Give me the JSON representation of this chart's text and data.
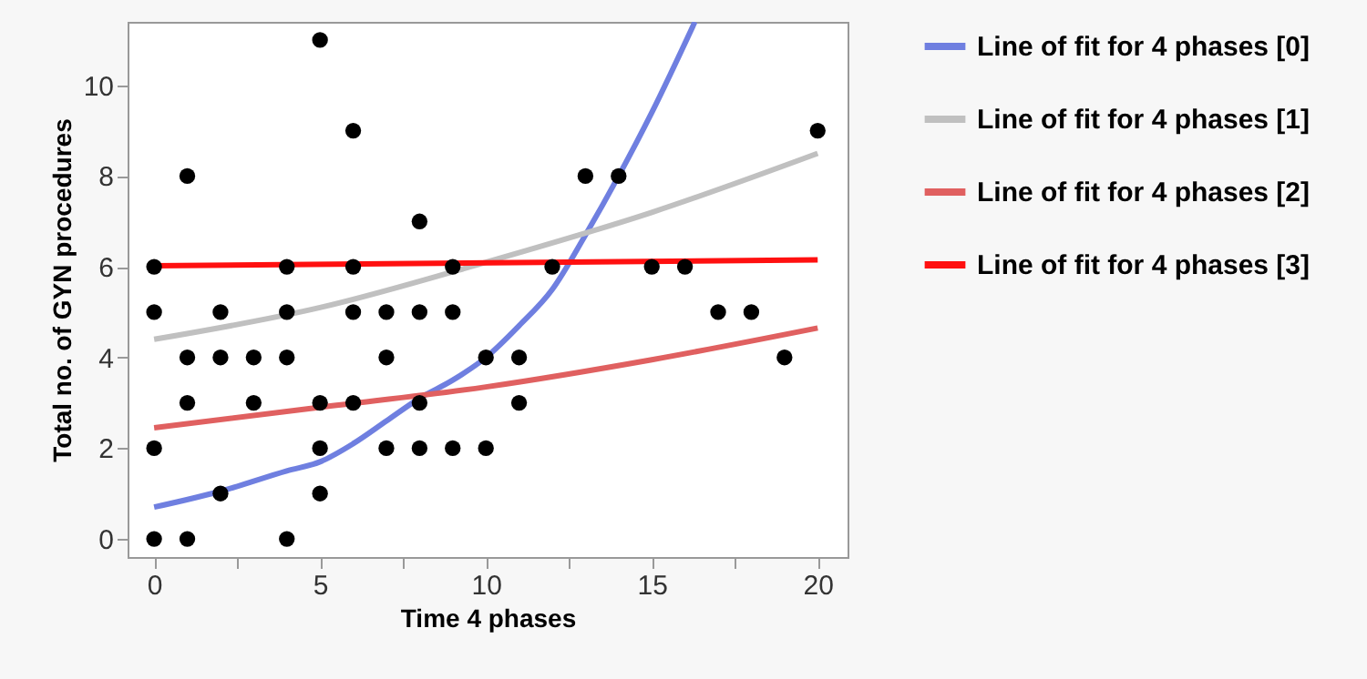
{
  "chart_data": {
    "type": "scatter",
    "xlabel": "Time 4 phases",
    "ylabel": "Total no. of GYN procedures",
    "xlim": [
      -0.8,
      20.9
    ],
    "ylim": [
      -0.4,
      11.4
    ],
    "xticks": [
      0,
      {
        "value": 2.5,
        "label": null
      },
      5,
      {
        "value": 7.5,
        "label": null
      },
      10,
      {
        "value": 12.5,
        "label": null
      },
      15,
      {
        "value": 17.5,
        "label": null
      },
      20
    ],
    "yticks": [
      0,
      2,
      4,
      6,
      8,
      10
    ],
    "grid": false,
    "legend": "right",
    "line_style": "solid",
    "series": [
      {
        "marker": "circle",
        "color": "#000000",
        "x": [
          0,
          0,
          0,
          0,
          1,
          1,
          1,
          1,
          2,
          2,
          2,
          3,
          3,
          4,
          4,
          4,
          4,
          5,
          5,
          5,
          5,
          6,
          6,
          6,
          6,
          7,
          7,
          7,
          8,
          8,
          8,
          8,
          9,
          9,
          9,
          10,
          10,
          11,
          11,
          12,
          13,
          14,
          15,
          16,
          17,
          18,
          19,
          20
        ],
        "values": [
          6,
          5,
          2,
          0,
          8,
          4,
          3,
          0,
          5,
          4,
          1,
          4,
          3,
          6,
          5,
          4,
          0,
          11,
          3,
          2,
          1,
          9,
          6,
          5,
          3,
          5,
          4,
          2,
          7,
          5,
          3,
          2,
          6,
          5,
          2,
          4,
          2,
          4,
          3,
          6,
          8,
          8,
          6,
          6,
          5,
          5,
          4,
          9
        ]
      },
      {
        "type": "line",
        "name": "Line of fit for 4 phases [0]",
        "color": "#6f7fe0",
        "x": [
          0,
          2,
          4,
          5,
          6,
          7,
          8,
          9,
          10,
          11,
          12,
          13,
          14,
          15,
          16.3
        ],
        "values": [
          0.7,
          1.05,
          1.5,
          1.7,
          2.1,
          2.6,
          3.1,
          3.5,
          4.0,
          4.7,
          5.5,
          6.7,
          8.0,
          9.4,
          11.4
        ]
      },
      {
        "type": "line",
        "name": "Line of fit for 4 phases [1]",
        "color": "#c0c0c0",
        "x": [
          0,
          5,
          10,
          15,
          20
        ],
        "values": [
          4.4,
          5.1,
          6.1,
          7.2,
          8.5
        ]
      },
      {
        "type": "line",
        "name": "Line of fit for 4 phases [2]",
        "color": "#e06060",
        "x": [
          0,
          5,
          10,
          15,
          20
        ],
        "values": [
          2.45,
          2.9,
          3.35,
          3.95,
          4.65
        ]
      },
      {
        "type": "line",
        "name": "Line of fit for 4 phases [3]",
        "color": "#ff1010",
        "x": [
          0,
          20
        ],
        "values": [
          6.02,
          6.15
        ]
      }
    ]
  }
}
